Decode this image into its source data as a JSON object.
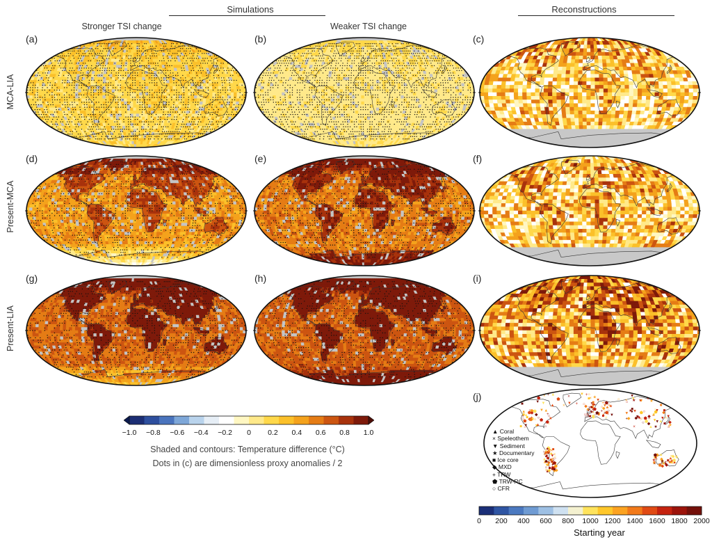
{
  "headers": {
    "simulations": "Simulations",
    "reconstructions": "Reconstructions"
  },
  "columns": {
    "stronger": "Stronger TSI change",
    "weaker": "Weaker TSI change"
  },
  "rows": [
    "MCA-LIA",
    "Present-MCA",
    "Present-LIA"
  ],
  "panels": [
    {
      "label": "(a)",
      "style": "a"
    },
    {
      "label": "(b)",
      "style": "b"
    },
    {
      "label": "(c)",
      "style": "c"
    },
    {
      "label": "(d)",
      "style": "d"
    },
    {
      "label": "(e)",
      "style": "e"
    },
    {
      "label": "(f)",
      "style": "f"
    },
    {
      "label": "(g)",
      "style": "g"
    },
    {
      "label": "(h)",
      "style": "h"
    },
    {
      "label": "(i)",
      "style": "i"
    },
    {
      "label": "(j)",
      "style": "j"
    }
  ],
  "temp_colorbar": {
    "ticks": [
      "−1.0",
      "−0.8",
      "−0.6",
      "−0.4",
      "−0.2",
      "0",
      "0.2",
      "0.4",
      "0.6",
      "0.8",
      "1.0"
    ],
    "colors": [
      "#1c2e74",
      "#2e4f9e",
      "#4a74bd",
      "#7ea7d8",
      "#b9d3ec",
      "#e6eef6",
      "#ffffff",
      "#fff7c2",
      "#ffe98a",
      "#ffd84a",
      "#fbc02a",
      "#f4a21c",
      "#e57c15",
      "#cc5511",
      "#a8320c",
      "#7e1a0a"
    ],
    "caption1": "Shaded and contours: Temperature difference (°C)",
    "caption2": "Dots in (c) are dimensionless proxy anomalies / 2"
  },
  "year_colorbar": {
    "ticks": [
      "0",
      "200",
      "400",
      "600",
      "800",
      "1000",
      "1200",
      "1400",
      "1600",
      "1800",
      "2000"
    ],
    "colors": [
      "#1b2f78",
      "#2f55a3",
      "#4b79c0",
      "#6f9bd3",
      "#9ec0e4",
      "#cfe1f1",
      "#f4f1d0",
      "#ffe35c",
      "#ffc72a",
      "#fca321",
      "#f27a1a",
      "#e04a14",
      "#c5230f",
      "#9c140b",
      "#74100a"
    ],
    "label": "Starting year"
  },
  "legend": [
    "▲ Coral",
    "× Speleothem",
    "▼ Sediment",
    "★ Documentary",
    "■ Ice core",
    "◆ MXD",
    "+ TRW",
    "⬟ TRW-RC",
    "○ CFR"
  ]
}
